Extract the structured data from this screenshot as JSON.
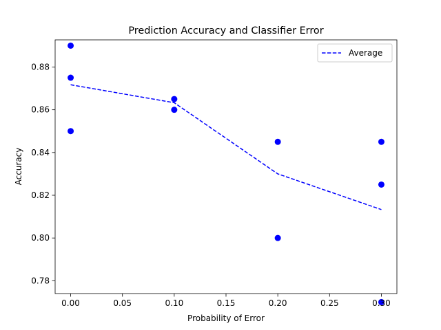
{
  "chart_data": {
    "type": "scatter",
    "title": "Prediction Accuracy and Classifier Error",
    "xlabel": "Probability of Error",
    "ylabel": "Accuracy",
    "xlim": [
      -0.015,
      0.315
    ],
    "ylim": [
      0.774,
      0.8927
    ],
    "grid": false,
    "legend_placement": "top-right",
    "x_ticks": [
      0.0,
      0.05,
      0.1,
      0.15,
      0.2,
      0.25,
      0.3
    ],
    "x_tick_labels": [
      "0.00",
      "0.05",
      "0.10",
      "0.15",
      "0.20",
      "0.25",
      "0.30"
    ],
    "y_ticks": [
      0.78,
      0.8,
      0.82,
      0.84,
      0.86,
      0.88
    ],
    "y_tick_labels": [
      "0.78",
      "0.80",
      "0.82",
      "0.84",
      "0.86",
      "0.88"
    ],
    "series": [
      {
        "kind": "scatter",
        "color": "#0000ff",
        "points": [
          {
            "x": 0.0,
            "y": 0.89
          },
          {
            "x": 0.0,
            "y": 0.875
          },
          {
            "x": 0.0,
            "y": 0.85
          },
          {
            "x": 0.1,
            "y": 0.865
          },
          {
            "x": 0.1,
            "y": 0.86
          },
          {
            "x": 0.2,
            "y": 0.845
          },
          {
            "x": 0.2,
            "y": 0.8
          },
          {
            "x": 0.3,
            "y": 0.845
          },
          {
            "x": 0.3,
            "y": 0.825
          },
          {
            "x": 0.3,
            "y": 0.77
          }
        ]
      },
      {
        "kind": "line",
        "name": "Average",
        "color": "#0000ff",
        "dashed": true,
        "points": [
          {
            "x": 0.0,
            "y": 0.8717
          },
          {
            "x": 0.1,
            "y": 0.8633
          },
          {
            "x": 0.2,
            "y": 0.83
          },
          {
            "x": 0.3,
            "y": 0.8133
          }
        ]
      }
    ]
  }
}
